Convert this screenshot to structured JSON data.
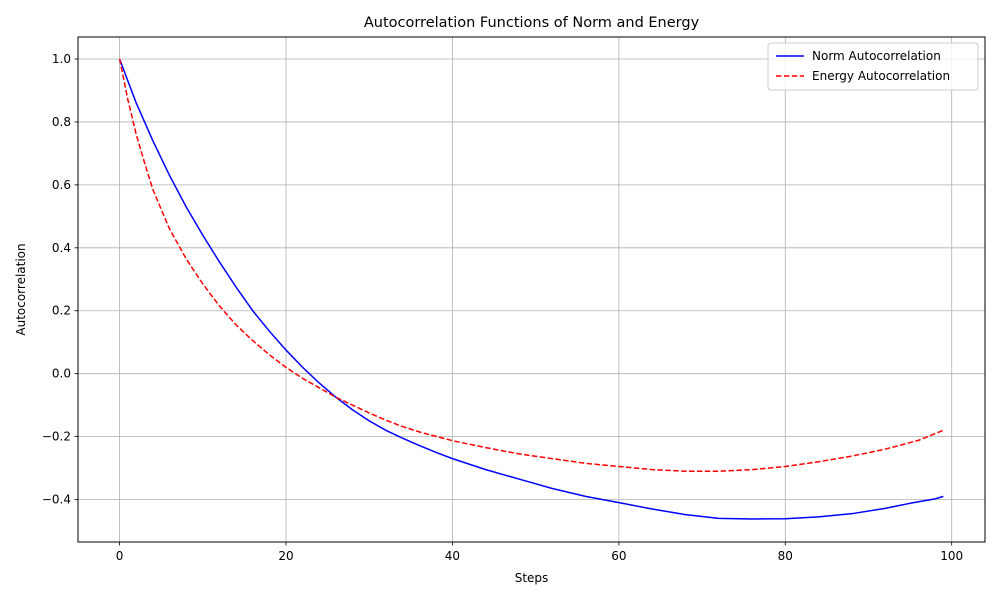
{
  "chart_data": {
    "type": "line",
    "title": "Autocorrelation Functions of Norm and Energy",
    "xlabel": "Steps",
    "ylabel": "Autocorrelation",
    "xlim": [
      -5,
      104
    ],
    "ylim": [
      -0.535,
      1.07
    ],
    "xticks": [
      0,
      20,
      40,
      60,
      80,
      100
    ],
    "yticks": [
      -0.4,
      -0.2,
      0.0,
      0.2,
      0.4,
      0.6,
      0.8,
      1.0
    ],
    "grid": true,
    "legend_position": "top-right",
    "series": [
      {
        "name": "Norm Autocorrelation",
        "color": "#0000ff",
        "style": "solid",
        "points": [
          [
            0,
            1.0
          ],
          [
            2,
            0.86
          ],
          [
            4,
            0.74
          ],
          [
            6,
            0.63
          ],
          [
            8,
            0.53
          ],
          [
            10,
            0.44
          ],
          [
            12,
            0.355
          ],
          [
            14,
            0.275
          ],
          [
            16,
            0.2
          ],
          [
            18,
            0.135
          ],
          [
            20,
            0.075
          ],
          [
            22,
            0.02
          ],
          [
            24,
            -0.03
          ],
          [
            26,
            -0.075
          ],
          [
            28,
            -0.115
          ],
          [
            30,
            -0.15
          ],
          [
            32,
            -0.18
          ],
          [
            34,
            -0.205
          ],
          [
            36,
            -0.228
          ],
          [
            38,
            -0.25
          ],
          [
            40,
            -0.27
          ],
          [
            44,
            -0.305
          ],
          [
            48,
            -0.335
          ],
          [
            52,
            -0.365
          ],
          [
            56,
            -0.39
          ],
          [
            60,
            -0.41
          ],
          [
            64,
            -0.43
          ],
          [
            68,
            -0.448
          ],
          [
            72,
            -0.46
          ],
          [
            76,
            -0.462
          ],
          [
            80,
            -0.461
          ],
          [
            84,
            -0.455
          ],
          [
            88,
            -0.445
          ],
          [
            92,
            -0.428
          ],
          [
            95,
            -0.412
          ],
          [
            98,
            -0.398
          ],
          [
            99,
            -0.39
          ]
        ]
      },
      {
        "name": "Energy Autocorrelation",
        "color": "#ff0000",
        "style": "dashed",
        "points": [
          [
            0,
            1.0
          ],
          [
            1,
            0.87
          ],
          [
            2,
            0.76
          ],
          [
            3,
            0.67
          ],
          [
            4,
            0.585
          ],
          [
            6,
            0.46
          ],
          [
            8,
            0.365
          ],
          [
            10,
            0.285
          ],
          [
            12,
            0.215
          ],
          [
            14,
            0.155
          ],
          [
            16,
            0.105
          ],
          [
            18,
            0.06
          ],
          [
            20,
            0.02
          ],
          [
            22,
            -0.015
          ],
          [
            24,
            -0.045
          ],
          [
            26,
            -0.075
          ],
          [
            28,
            -0.1
          ],
          [
            30,
            -0.125
          ],
          [
            32,
            -0.148
          ],
          [
            34,
            -0.168
          ],
          [
            36,
            -0.185
          ],
          [
            40,
            -0.213
          ],
          [
            44,
            -0.235
          ],
          [
            48,
            -0.255
          ],
          [
            52,
            -0.27
          ],
          [
            56,
            -0.285
          ],
          [
            60,
            -0.295
          ],
          [
            64,
            -0.305
          ],
          [
            68,
            -0.31
          ],
          [
            72,
            -0.31
          ],
          [
            76,
            -0.305
          ],
          [
            80,
            -0.295
          ],
          [
            84,
            -0.28
          ],
          [
            88,
            -0.262
          ],
          [
            92,
            -0.24
          ],
          [
            96,
            -0.212
          ],
          [
            99,
            -0.18
          ]
        ]
      }
    ]
  }
}
